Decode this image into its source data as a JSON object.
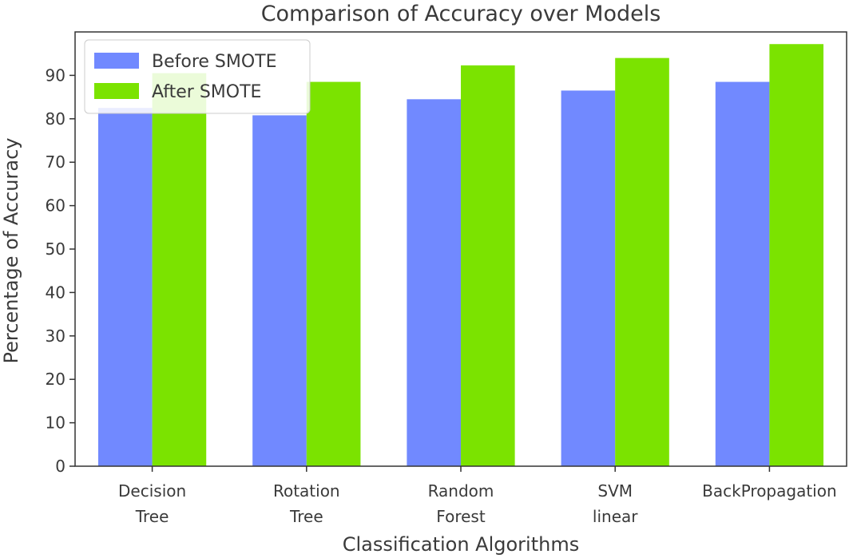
{
  "chart_data": {
    "type": "bar",
    "title": "Comparison of Accuracy over Models",
    "xlabel": "Classification Algorithms",
    "ylabel": "Percentage of Accuracy",
    "categories": [
      [
        "Decision",
        "Tree"
      ],
      [
        "Rotation",
        "Tree"
      ],
      [
        "Random",
        "Forest"
      ],
      [
        "SVM",
        "linear"
      ],
      [
        "BackPropagation"
      ]
    ],
    "series": [
      {
        "name": "Before SMOTE",
        "color": "#7189ff",
        "values": [
          82.5,
          80.8,
          84.5,
          86.5,
          88.5
        ]
      },
      {
        "name": "After SMOTE",
        "color": "#7be300",
        "values": [
          90.5,
          88.5,
          92.3,
          94.0,
          97.2
        ]
      }
    ],
    "ylim": [
      0,
      100
    ],
    "yticks": [
      0,
      10,
      20,
      30,
      40,
      50,
      60,
      70,
      80,
      90
    ],
    "grid": false,
    "legend_position": "top-left"
  }
}
